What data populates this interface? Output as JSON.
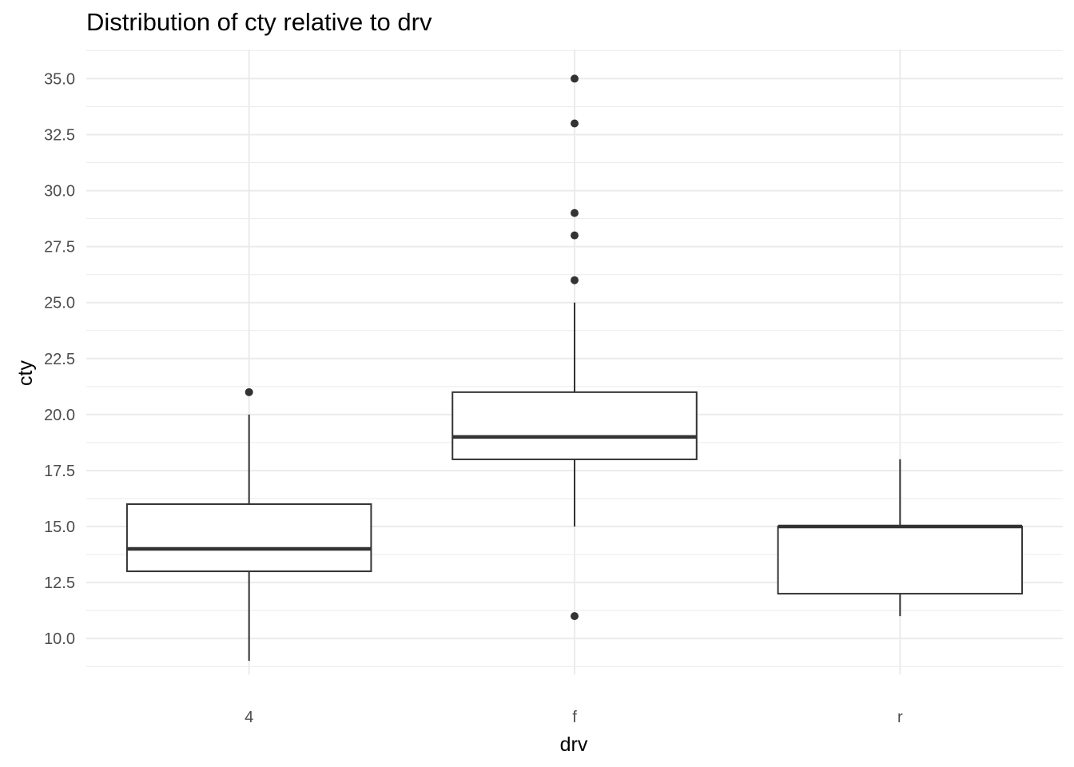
{
  "chart_data": {
    "type": "boxplot",
    "title": "Distribution of cty relative to drv",
    "xlabel": "drv",
    "ylabel": "cty",
    "categories": [
      "4",
      "f",
      "r"
    ],
    "ylim": [
      8.4,
      36.3
    ],
    "yticks": [
      "10.0",
      "12.5",
      "15.0",
      "17.5",
      "20.0",
      "22.5",
      "25.0",
      "27.5",
      "30.0",
      "32.5",
      "35.0"
    ],
    "ytick_values": [
      10,
      12.5,
      15,
      17.5,
      20,
      22.5,
      25,
      27.5,
      30,
      32.5,
      35
    ],
    "grid": true,
    "legend": "none",
    "colors": {
      "box": "#333333",
      "grid": "#ebebeb",
      "fill": "#ffffff"
    },
    "boxes": [
      {
        "category": "4",
        "lower_whisker": 9,
        "q1": 13,
        "median": 14,
        "q3": 16,
        "upper_whisker": 20,
        "outliers": [
          21
        ]
      },
      {
        "category": "f",
        "lower_whisker": 15,
        "q1": 18,
        "median": 19,
        "q3": 21,
        "upper_whisker": 25,
        "outliers": [
          11,
          26,
          28,
          29,
          33,
          35
        ]
      },
      {
        "category": "r",
        "lower_whisker": 11,
        "q1": 12,
        "median": 15,
        "q3": 15,
        "upper_whisker": 18,
        "outliers": []
      }
    ]
  }
}
